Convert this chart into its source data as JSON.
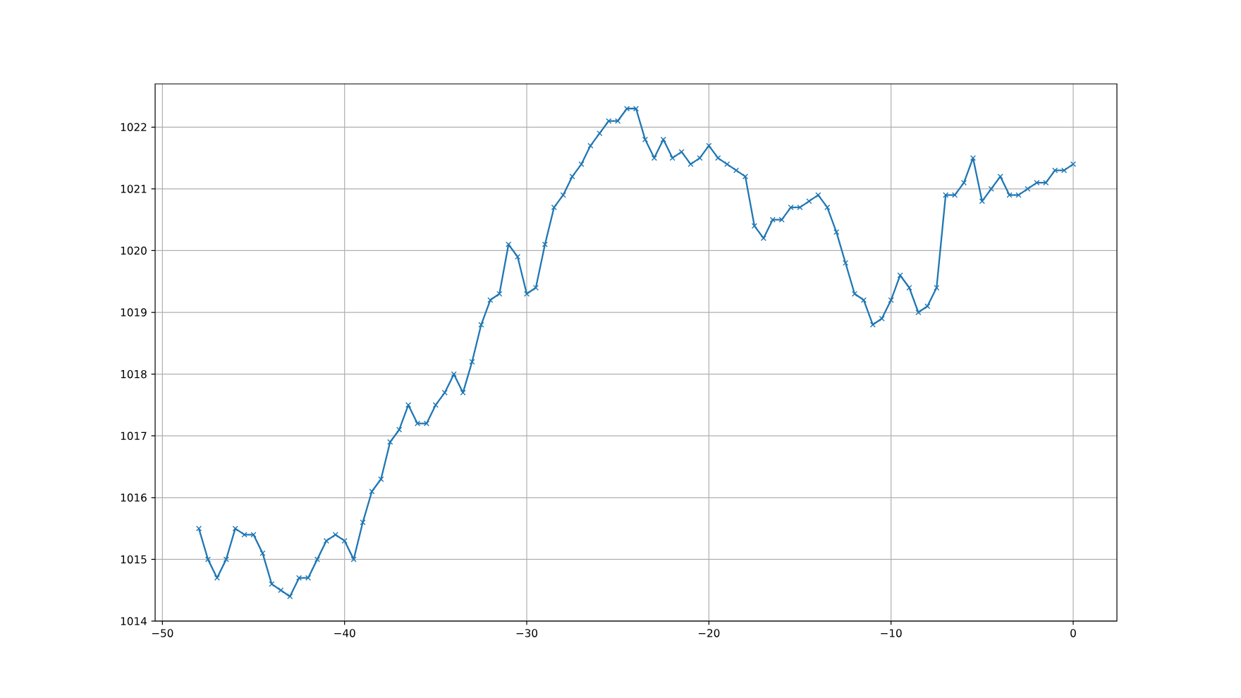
{
  "chart_data": {
    "type": "line",
    "x": [
      -48,
      -47.5,
      -47,
      -46.5,
      -46,
      -45.5,
      -45,
      -44.5,
      -44,
      -43.5,
      -43,
      -42.5,
      -42,
      -41.5,
      -41,
      -40.5,
      -40,
      -39.5,
      -39,
      -38.5,
      -38,
      -37.5,
      -37,
      -36.5,
      -36,
      -35.5,
      -35,
      -34.5,
      -34,
      -33.5,
      -33,
      -32.5,
      -32,
      -31.5,
      -31,
      -30.5,
      -30,
      -29.5,
      -29,
      -28.5,
      -28,
      -27.5,
      -27,
      -26.5,
      -26,
      -25.5,
      -25,
      -24.5,
      -24,
      -23.5,
      -23,
      -22.5,
      -22,
      -21.5,
      -21,
      -20.5,
      -20,
      -19.5,
      -19,
      -18.5,
      -18,
      -17.5,
      -17,
      -16.5,
      -16,
      -15.5,
      -15,
      -14.5,
      -14,
      -13.5,
      -13,
      -12.5,
      -12,
      -11.5,
      -11,
      -10.5,
      -10,
      -9.5,
      -9,
      -8.5,
      -8,
      -7.5,
      -7,
      -6.5,
      -6,
      -5.5,
      -5,
      -4.5,
      -4,
      -3.5,
      -3,
      -2.5,
      -2,
      -1.5,
      -1,
      -0.5,
      0
    ],
    "series": [
      {
        "color": "#1f77b4",
        "values": [
          1015.5,
          1015.0,
          1014.7,
          1015.0,
          1015.5,
          1015.4,
          1015.4,
          1015.1,
          1014.6,
          1014.5,
          1014.4,
          1014.7,
          1014.7,
          1015.0,
          1015.3,
          1015.4,
          1015.3,
          1015.0,
          1015.6,
          1016.1,
          1016.3,
          1016.9,
          1017.1,
          1017.5,
          1017.2,
          1017.2,
          1017.5,
          1017.7,
          1018.0,
          1017.7,
          1018.2,
          1018.8,
          1019.2,
          1019.3,
          1020.1,
          1019.9,
          1019.3,
          1019.4,
          1020.1,
          1020.7,
          1020.9,
          1021.2,
          1021.4,
          1021.7,
          1021.9,
          1022.1,
          1022.1,
          1022.3,
          1022.3,
          1021.8,
          1021.5,
          1021.8,
          1021.5,
          1021.6,
          1021.4,
          1021.5,
          1021.7,
          1021.5,
          1021.4,
          1021.3,
          1021.2,
          1020.4,
          1020.2,
          1020.5,
          1020.5,
          1020.7,
          1020.7,
          1020.8,
          1020.9,
          1020.7,
          1020.3,
          1019.8,
          1019.3,
          1019.2,
          1018.8,
          1018.9,
          1019.2,
          1019.6,
          1019.4,
          1019.0,
          1019.1,
          1019.4,
          1020.9,
          1020.9,
          1021.1,
          1021.5,
          1020.8,
          1021.0,
          1021.2,
          1020.9,
          1020.9,
          1021.0,
          1021.1,
          1021.1,
          1021.3,
          1021.3,
          1021.4
        ]
      }
    ],
    "xlim": [
      -50.4,
      2.4
    ],
    "ylim": [
      1014,
      1022.7
    ],
    "xticks": [
      {
        "value": -50,
        "label": "−50"
      },
      {
        "value": -40,
        "label": "−40"
      },
      {
        "value": -30,
        "label": "−30"
      },
      {
        "value": -20,
        "label": "−20"
      },
      {
        "value": -10,
        "label": "−10"
      },
      {
        "value": 0,
        "label": "0"
      }
    ],
    "yticks": [
      1014,
      1015,
      1016,
      1017,
      1018,
      1019,
      1020,
      1021,
      1022
    ],
    "grid": true,
    "marker": "cross",
    "line_style": "solid"
  }
}
